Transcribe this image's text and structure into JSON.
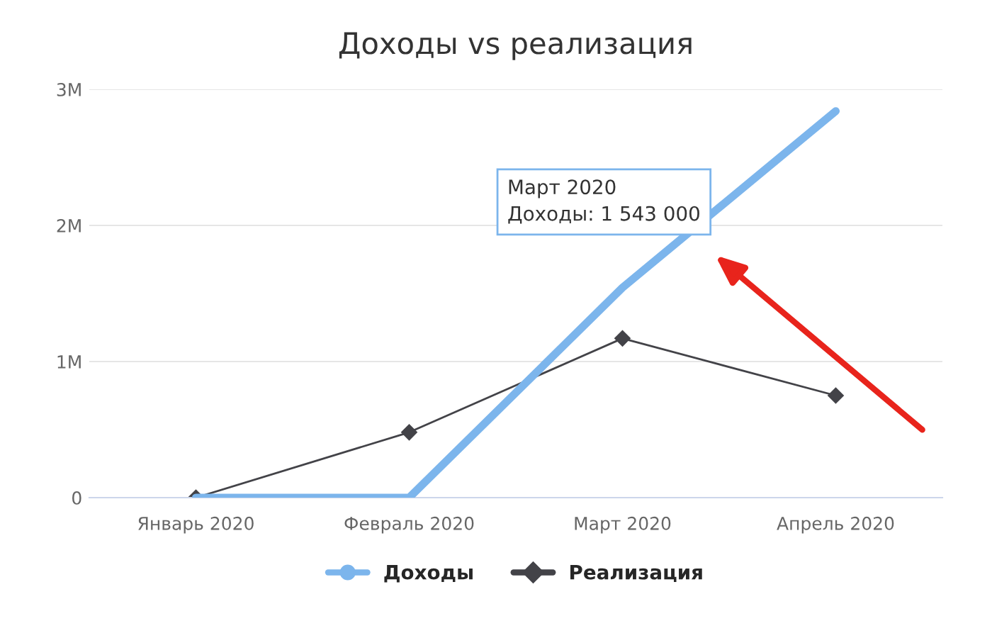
{
  "chart_data": {
    "type": "line",
    "title": "Доходы vs реализация",
    "categories": [
      "Январь 2020",
      "Февраль 2020",
      "Март 2020",
      "Апрель 2020"
    ],
    "series": [
      {
        "name": "Доходы",
        "color": "#7cb5ec",
        "values": [
          0,
          0,
          1543000,
          2840000
        ],
        "marker": "none"
      },
      {
        "name": "Реализация",
        "color": "#434348",
        "values": [
          0,
          480000,
          1170000,
          750000
        ],
        "marker": "diamond"
      }
    ],
    "ylim": [
      0,
      3000000
    ],
    "yticks": [
      {
        "value": 0,
        "label": "0"
      },
      {
        "value": 1000000,
        "label": "1M"
      },
      {
        "value": 2000000,
        "label": "2M"
      },
      {
        "value": 3000000,
        "label": "3M"
      }
    ],
    "grid": "y",
    "legend": "bottom",
    "line_style": "solid",
    "annotations": [
      "Март 2020",
      "Доходы: 1 543 000"
    ]
  }
}
